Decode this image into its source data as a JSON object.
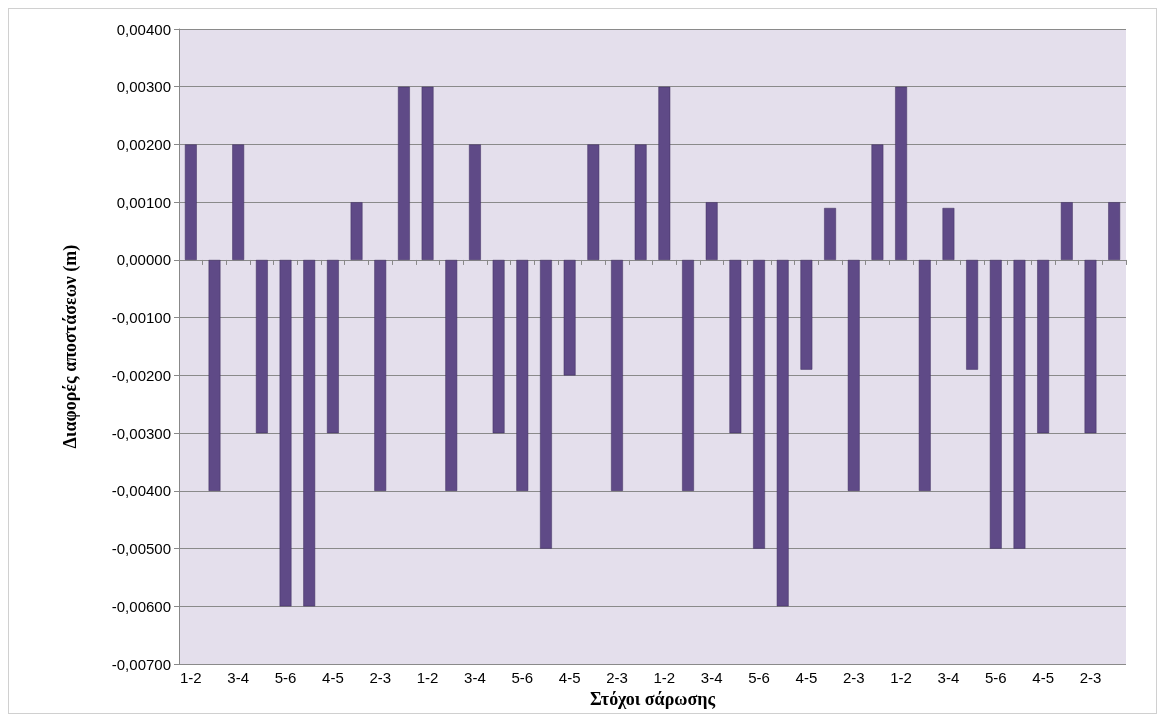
{
  "chart_data": {
    "type": "bar",
    "xlabel": "Στόχοι σάρωσης",
    "ylabel": "Διαφορές αποστάσεων (m)",
    "categories": [
      "1-2",
      null,
      "3-4",
      null,
      "5-6",
      null,
      "4-5",
      null,
      "2-3",
      null,
      "1-2",
      null,
      "3-4",
      null,
      "5-6",
      null,
      "4-5",
      null,
      "2-3",
      null,
      "1-2",
      null,
      "3-4",
      null,
      "5-6",
      null,
      "4-5",
      null,
      "2-3",
      null,
      "1-2",
      null,
      "3-4",
      null,
      "5-6",
      null,
      "4-5",
      null,
      "2-3",
      null
    ],
    "values": [
      0.002,
      -0.004,
      0.002,
      -0.003,
      -0.006,
      -0.006,
      -0.003,
      0.001,
      -0.004,
      0.003,
      0.003,
      -0.004,
      0.002,
      -0.003,
      -0.004,
      -0.005,
      -0.002,
      0.002,
      -0.004,
      0.002,
      0.003,
      -0.004,
      0.001,
      -0.003,
      -0.005,
      -0.006,
      -0.0019,
      0.0009,
      -0.004,
      0.002,
      0.003,
      -0.004,
      0.0009,
      -0.0019,
      -0.005,
      -0.005,
      -0.003,
      0.001,
      -0.003,
      0.001
    ],
    "color": "#5f4a87",
    "ylim": [
      -0.007,
      0.004
    ],
    "yticks": [
      {
        "value": -0.007,
        "label": "-0,00700"
      },
      {
        "value": -0.006,
        "label": "-0,00600"
      },
      {
        "value": -0.005,
        "label": "-0,00500"
      },
      {
        "value": -0.004,
        "label": "-0,00400"
      },
      {
        "value": -0.003,
        "label": "-0,00300"
      },
      {
        "value": -0.002,
        "label": "-0,00200"
      },
      {
        "value": -0.001,
        "label": "-0,00100"
      },
      {
        "value": 0,
        "label": "0,00000"
      },
      {
        "value": 0.001,
        "label": "0,00100"
      },
      {
        "value": 0.002,
        "label": "0,00200"
      },
      {
        "value": 0.003,
        "label": "0,00300"
      },
      {
        "value": 0.004,
        "label": "0,00400"
      }
    ],
    "grid": "y"
  }
}
